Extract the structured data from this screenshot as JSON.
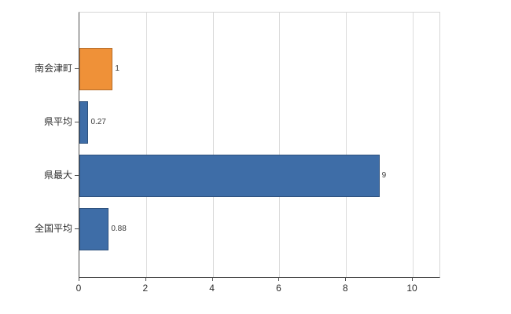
{
  "chart_data": {
    "type": "bar",
    "orientation": "horizontal",
    "title": "",
    "xlabel": "",
    "ylabel": "",
    "categories": [
      "南会津町",
      "県平均",
      "県最大",
      "全国平均"
    ],
    "values": [
      1,
      0.27,
      9,
      0.88
    ],
    "value_labels": [
      "1",
      "0.27",
      "9",
      "0.88"
    ],
    "bar_colors": [
      "#ef9138",
      "#3e6da7",
      "#3e6da7",
      "#3e6da7"
    ],
    "xlim": [
      0,
      10.8
    ],
    "x_ticks": [
      0,
      2,
      4,
      6,
      8,
      10
    ],
    "grid": true,
    "legend": "none",
    "colors": {
      "highlight_orange": "#ef9138",
      "base_blue": "#3e6da7",
      "gridline": "#dcdcdc",
      "axis": "#4d4d4d",
      "background": "#ffffff"
    }
  }
}
